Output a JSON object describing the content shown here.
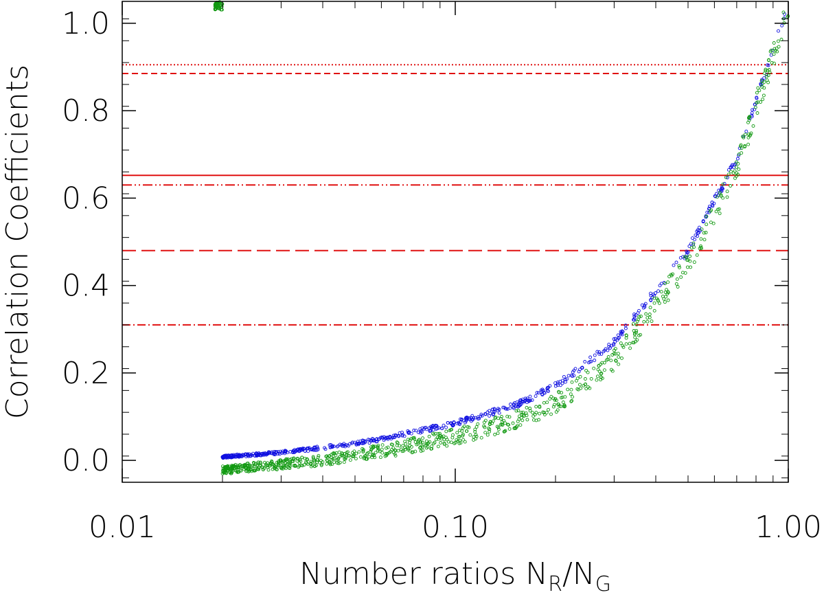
{
  "chart_data": {
    "type": "scatter",
    "xscale": "log",
    "xlim": [
      0.01,
      1.0
    ],
    "ylim": [
      -0.05,
      1.05
    ],
    "xlabel": {
      "main": "Number ratios N",
      "sub1": "R",
      "mid": "/N",
      "sub2": "G"
    },
    "ylabel": "Correlation Coefficients",
    "x_ticks": [
      0.01,
      0.1,
      1.0
    ],
    "x_tick_labels": [
      "0.01",
      "0.10",
      "1.00"
    ],
    "y_ticks": [
      0.0,
      0.2,
      0.4,
      0.6,
      0.8,
      1.0
    ],
    "y_tick_labels": [
      "0.0",
      "0.2",
      "0.4",
      "0.6",
      "0.8",
      "1.0"
    ],
    "grid": false,
    "colors": {
      "series_a": "#1010e0",
      "series_b": "#119911",
      "reference": "#e01010"
    },
    "reference_lines": [
      {
        "y": 0.905,
        "style": "dotted"
      },
      {
        "y": 0.885,
        "style": "dashed"
      },
      {
        "y": 0.652,
        "style": "solid"
      },
      {
        "y": 0.63,
        "style": "dash-dot-dot"
      },
      {
        "y": 0.48,
        "style": "long-dashed"
      },
      {
        "y": 0.31,
        "style": "dash-dot"
      }
    ],
    "series": [
      {
        "color": "#1010e0",
        "x_range": [
          0.02,
          1.0
        ],
        "curve": [
          {
            "x": 0.02,
            "y": 0.008
          },
          {
            "x": 0.03,
            "y": 0.018
          },
          {
            "x": 0.05,
            "y": 0.038
          },
          {
            "x": 0.07,
            "y": 0.06
          },
          {
            "x": 0.1,
            "y": 0.085
          },
          {
            "x": 0.15,
            "y": 0.125
          },
          {
            "x": 0.2,
            "y": 0.17
          },
          {
            "x": 0.3,
            "y": 0.27
          },
          {
            "x": 0.5,
            "y": 0.48
          },
          {
            "x": 0.7,
            "y": 0.69
          },
          {
            "x": 1.0,
            "y": 1.04
          }
        ]
      },
      {
        "color": "#119911",
        "x_range": [
          0.019,
          1.0
        ],
        "curve": [
          {
            "x": 0.02,
            "y": -0.022
          },
          {
            "x": 0.03,
            "y": -0.01
          },
          {
            "x": 0.05,
            "y": 0.01
          },
          {
            "x": 0.07,
            "y": 0.03
          },
          {
            "x": 0.1,
            "y": 0.055
          },
          {
            "x": 0.15,
            "y": 0.09
          },
          {
            "x": 0.2,
            "y": 0.13
          },
          {
            "x": 0.3,
            "y": 0.23
          },
          {
            "x": 0.5,
            "y": 0.45
          },
          {
            "x": 0.7,
            "y": 0.67
          },
          {
            "x": 1.0,
            "y": 1.04
          }
        ]
      }
    ]
  }
}
